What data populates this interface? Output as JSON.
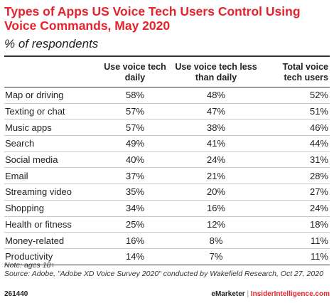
{
  "chart_data": {
    "type": "table",
    "title": "Types of Apps US Voice Tech Users Control Using Voice Commands, May 2020",
    "subtitle": "% of respondents",
    "columns": [
      "Use voice tech daily",
      "Use voice tech less than daily",
      "Total voice tech users"
    ],
    "rows": [
      {
        "category": "Map or driving",
        "values": [
          "58%",
          "48%",
          "52%"
        ]
      },
      {
        "category": "Texting or chat",
        "values": [
          "57%",
          "47%",
          "51%"
        ]
      },
      {
        "category": "Music apps",
        "values": [
          "57%",
          "38%",
          "46%"
        ]
      },
      {
        "category": "Search",
        "values": [
          "49%",
          "41%",
          "44%"
        ]
      },
      {
        "category": "Social media",
        "values": [
          "40%",
          "24%",
          "31%"
        ]
      },
      {
        "category": "Email",
        "values": [
          "37%",
          "21%",
          "28%"
        ]
      },
      {
        "category": "Streaming video",
        "values": [
          "35%",
          "20%",
          "27%"
        ]
      },
      {
        "category": "Shopping",
        "values": [
          "34%",
          "16%",
          "24%"
        ]
      },
      {
        "category": "Health or fitness",
        "values": [
          "25%",
          "12%",
          "18%"
        ]
      },
      {
        "category": "Money-related",
        "values": [
          "16%",
          "8%",
          "11%"
        ]
      },
      {
        "category": "Productivity",
        "values": [
          "14%",
          "7%",
          "11%"
        ]
      }
    ],
    "note": "Note: ages 18+",
    "source": "Source: Adobe, \"Adobe XD Voice Survey 2020\" conducted by Wakefield Research, Oct 27, 2020"
  },
  "footer": {
    "code": "261440",
    "brand": "eMarketer",
    "separator": "|",
    "site": "InsiderIntelligence.com"
  },
  "colors": {
    "title": "#e5232c",
    "text": "#222222",
    "rule": "#333333",
    "row_rule": "#c8c8c8"
  }
}
